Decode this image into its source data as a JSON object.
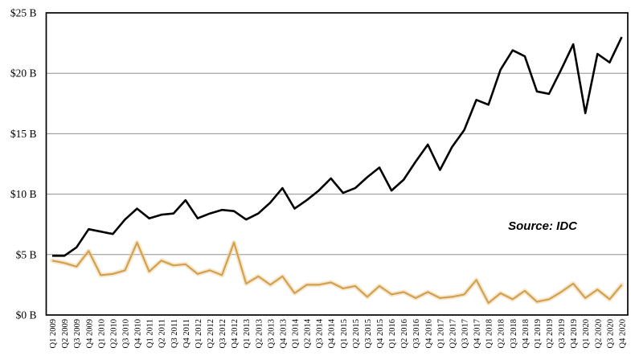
{
  "chart_data": {
    "type": "line",
    "source_note": "Source: IDC",
    "grid": true,
    "legend": "none",
    "x_label_rotation": 90,
    "x_labels": [
      "Q1 2009",
      "Q2 2009",
      "Q3 2009",
      "Q4 2009",
      "Q1 2010",
      "Q2 2010",
      "Q3 2010",
      "Q4 2010",
      "Q1 2011",
      "Q2 2011",
      "Q3 2011",
      "Q4 2011",
      "Q1 2012",
      "Q2 2012",
      "Q3 2012",
      "Q4 2012",
      "Q1 2013",
      "Q2 2013",
      "Q3 2013",
      "Q4 2013",
      "Q1 2014",
      "Q2 2014",
      "Q3 2014",
      "Q4 2014",
      "Q1 2015",
      "Q2 2015",
      "Q3 2015",
      "Q4 2015",
      "Q1 2016",
      "Q2 2016",
      "Q3 2016",
      "Q4 2016",
      "Q1 2017",
      "Q2 2017",
      "Q3 2017",
      "Q4 2017",
      "Q1 2018",
      "Q2 2018",
      "Q3 2018",
      "Q4 2018",
      "Q1 2019",
      "Q2 2019",
      "Q3 2019",
      "Q4 2019",
      "Q1 2020",
      "Q2 2020",
      "Q3 2020",
      "Q4 2020"
    ],
    "y_axis": {
      "min": 0,
      "max": 25,
      "step": 5,
      "unit_format": "$N B",
      "tick_values": [
        25,
        20,
        15,
        10,
        5,
        0
      ],
      "tick_labels": [
        "$25 B",
        "$20 B",
        "$15 B",
        "$10 B",
        "$5 B",
        "$0 B"
      ]
    },
    "series": [
      {
        "name": "upper-black-line",
        "color": "#000000",
        "values": [
          4.9,
          4.9,
          5.6,
          7.1,
          6.9,
          6.7,
          7.9,
          8.8,
          8.0,
          8.3,
          8.4,
          9.5,
          8.0,
          8.4,
          8.7,
          8.6,
          7.9,
          8.4,
          9.3,
          10.5,
          8.8,
          9.5,
          10.3,
          11.3,
          10.1,
          10.5,
          11.4,
          12.2,
          10.3,
          11.2,
          12.7,
          14.1,
          12.0,
          13.9,
          15.3,
          17.8,
          17.4,
          20.3,
          21.9,
          21.4,
          18.5,
          18.3,
          20.3,
          22.4,
          16.7,
          21.6,
          20.9,
          23.0
        ]
      },
      {
        "name": "lower-orange-line",
        "color": "#d3a04e",
        "glow_color": "#ecd6a8",
        "values": [
          4.5,
          4.3,
          4.0,
          5.3,
          3.3,
          3.4,
          3.7,
          6.0,
          3.6,
          4.5,
          4.1,
          4.2,
          3.4,
          3.7,
          3.3,
          6.0,
          2.6,
          3.2,
          2.5,
          3.2,
          1.8,
          2.5,
          2.5,
          2.7,
          2.2,
          2.4,
          1.5,
          2.4,
          1.7,
          1.9,
          1.4,
          1.9,
          1.4,
          1.5,
          1.7,
          2.9,
          1.0,
          1.8,
          1.3,
          2.0,
          1.1,
          1.3,
          1.9,
          2.6,
          1.4,
          2.1,
          1.3,
          2.5
        ]
      }
    ],
    "colors": {
      "grid": "#909090",
      "axis_border": "#000000",
      "background": "#ffffff"
    }
  }
}
